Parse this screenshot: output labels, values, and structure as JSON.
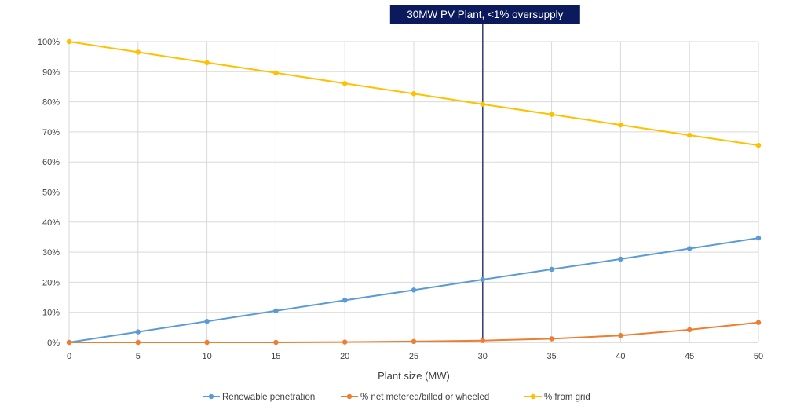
{
  "chart_data": {
    "type": "line",
    "xlabel": "Plant size (MW)",
    "ylabel": "",
    "x": [
      0,
      5,
      10,
      15,
      20,
      25,
      30,
      35,
      40,
      45,
      50
    ],
    "xlim": [
      0,
      50
    ],
    "ylim": [
      0,
      100
    ],
    "y_unit": "%",
    "x_ticks": [
      "0",
      "5",
      "10",
      "15",
      "20",
      "25",
      "30",
      "35",
      "40",
      "45",
      "50"
    ],
    "y_ticks": [
      "0%",
      "10%",
      "20%",
      "30%",
      "40%",
      "50%",
      "60%",
      "70%",
      "80%",
      "90%",
      "100%"
    ],
    "grid": true,
    "legend_position": "bottom",
    "series": [
      {
        "name": "Renewable penetration",
        "color": "#5b9bd5",
        "values": [
          0,
          3.5,
          7,
          10.5,
          14,
          17.4,
          20.9,
          24.3,
          27.7,
          31.2,
          34.7
        ]
      },
      {
        "name": "% net metered/billed or wheeled",
        "color": "#ed7d31",
        "values": [
          0,
          0,
          0,
          0,
          0.1,
          0.3,
          0.6,
          1.2,
          2.3,
          4.2,
          6.6
        ]
      },
      {
        "name": "% from grid",
        "color": "#ffc000",
        "values": [
          100,
          96.5,
          93,
          89.6,
          86.1,
          82.7,
          79.2,
          75.8,
          72.3,
          68.9,
          65.5
        ]
      }
    ],
    "annotation": {
      "text": "30MW PV Plant, <1% oversupply",
      "x": 30,
      "box_color": "#0b1a5c",
      "line_color": "#2e3a73"
    },
    "colors": {
      "grid": "#d9d9d9",
      "axis": "#bfbfbf"
    }
  }
}
